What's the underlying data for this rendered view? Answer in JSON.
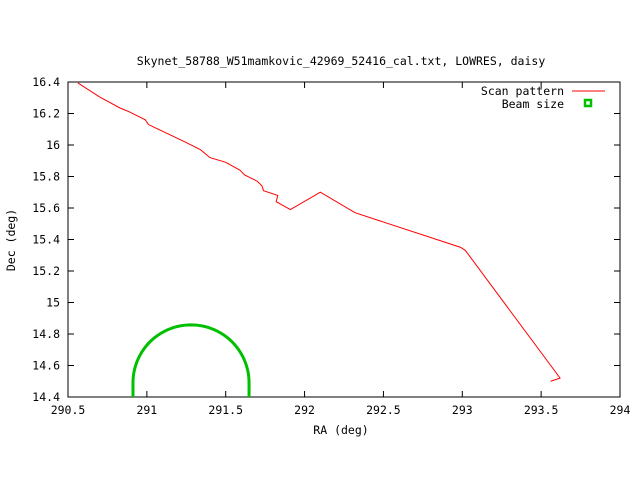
{
  "chart_data": {
    "type": "line",
    "title": "Skynet_58788_W51mamkovic_42969_52416_cal.txt, LOWRES, daisy",
    "xlabel": "RA (deg)",
    "ylabel": "Dec (deg)",
    "xlim": [
      290.5,
      294
    ],
    "ylim": [
      14.4,
      16.4
    ],
    "xticks": [
      290.5,
      291,
      291.5,
      292,
      292.5,
      293,
      293.5,
      294
    ],
    "xtick_labels": [
      "290.5",
      "291",
      "291.5",
      "292",
      "292.5",
      "293",
      "293.5",
      "294"
    ],
    "yticks": [
      14.4,
      14.6,
      14.8,
      15,
      15.2,
      15.4,
      15.6,
      15.8,
      16,
      16.2,
      16.4
    ],
    "ytick_labels": [
      "14.4",
      "14.6",
      "14.8",
      "15",
      "15.2",
      "15.4",
      "15.6",
      "15.8",
      "16",
      "16.2",
      "16.4"
    ],
    "grid": false,
    "legend_position": "top-right",
    "series": [
      {
        "name": "Scan pattern",
        "color": "#ff0000",
        "x": [
          290.563,
          290.7,
          290.83,
          290.89,
          290.99,
          291.01,
          291.24,
          291.34,
          291.4,
          291.5,
          291.59,
          291.62,
          291.7,
          291.73,
          291.74,
          291.83,
          291.82,
          291.91,
          292.1,
          292.32,
          292.99,
          293.02,
          293.62,
          293.56
        ],
        "y": [
          16.394,
          16.305,
          16.235,
          16.21,
          16.16,
          16.13,
          16.02,
          15.97,
          15.92,
          15.89,
          15.84,
          15.81,
          15.77,
          15.74,
          15.71,
          15.68,
          15.64,
          15.59,
          15.7,
          15.57,
          15.35,
          15.33,
          14.52,
          14.5
        ]
      },
      {
        "name": "Beam size",
        "color": "#00c000",
        "center": [
          291.28,
          14.49
        ],
        "radius_x": 0.368,
        "radius_y": 0.368
      }
    ]
  }
}
